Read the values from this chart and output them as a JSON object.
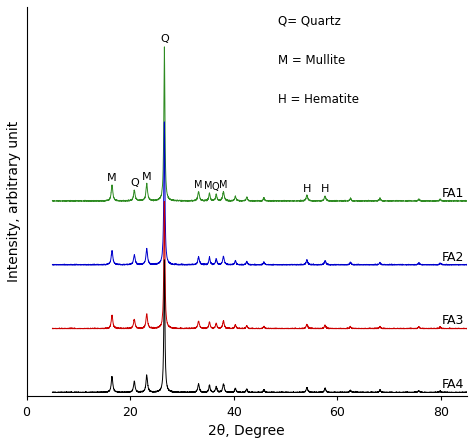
{
  "xlabel": "2θ, Degree",
  "ylabel": "Intensity, arbitrary unit",
  "xmin": 5,
  "xmax": 85,
  "legend_text": [
    "Q= Quartz",
    "M = Mullite",
    "H = Hematite"
  ],
  "series_labels": [
    "FA1",
    "FA2",
    "FA3",
    "FA4"
  ],
  "series_colors": [
    "#2e8b22",
    "#0000cc",
    "#cc0000",
    "#000000"
  ],
  "series_offsets": [
    0.72,
    0.48,
    0.24,
    0.0
  ],
  "tick_fontsize": 9,
  "label_fontsize": 10,
  "annot_fontsize": 8,
  "figsize": [
    4.74,
    4.45
  ],
  "dpi": 100
}
